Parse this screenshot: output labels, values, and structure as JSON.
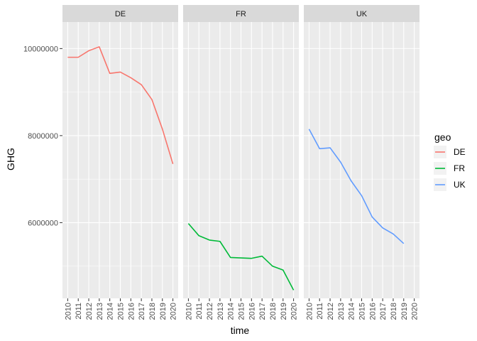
{
  "chart_data": {
    "type": "line",
    "xlabel": "time",
    "ylabel": "GHG",
    "facet_by": "geo",
    "panels": [
      "DE",
      "FR",
      "UK"
    ],
    "x_ticks": [
      2010,
      2011,
      2012,
      2013,
      2014,
      2015,
      2016,
      2017,
      2018,
      2019,
      2020
    ],
    "y_ticks": [
      6000000,
      8000000,
      10000000
    ],
    "y_tick_labels": [
      "6000000",
      "8000000",
      "10000000"
    ],
    "xlim": [
      2009.5,
      2020.5
    ],
    "ylim": [
      4260000,
      10610000
    ],
    "grid": true,
    "legend": {
      "title": "geo",
      "position": "right",
      "entries": [
        "DE",
        "FR",
        "UK"
      ]
    },
    "colors": {
      "DE": "#F8766D",
      "FR": "#00BA38",
      "UK": "#619CFF",
      "panel_bg": "#EBEBEB",
      "strip_bg": "#D9D9D9",
      "grid": "#FFFFFF"
    },
    "series": [
      {
        "name": "DE",
        "panel": "DE",
        "x": [
          2010,
          2011,
          2012,
          2013,
          2014,
          2015,
          2016,
          2017,
          2018,
          2019,
          2020
        ],
        "values": [
          9800000,
          9800000,
          9950000,
          10040000,
          9430000,
          9460000,
          9330000,
          9170000,
          8830000,
          8150000,
          7350000
        ]
      },
      {
        "name": "FR",
        "panel": "FR",
        "x": [
          2010,
          2011,
          2012,
          2013,
          2014,
          2015,
          2016,
          2017,
          2018,
          2019,
          2020
        ],
        "values": [
          5980000,
          5700000,
          5600000,
          5570000,
          5200000,
          5190000,
          5180000,
          5230000,
          5000000,
          4910000,
          4450000
        ]
      },
      {
        "name": "UK",
        "panel": "UK",
        "x": [
          2010,
          2011,
          2012,
          2013,
          2014,
          2015,
          2016,
          2017,
          2018,
          2019
        ],
        "values": [
          8150000,
          7700000,
          7720000,
          7390000,
          6960000,
          6620000,
          6130000,
          5880000,
          5740000,
          5520000
        ]
      }
    ]
  }
}
